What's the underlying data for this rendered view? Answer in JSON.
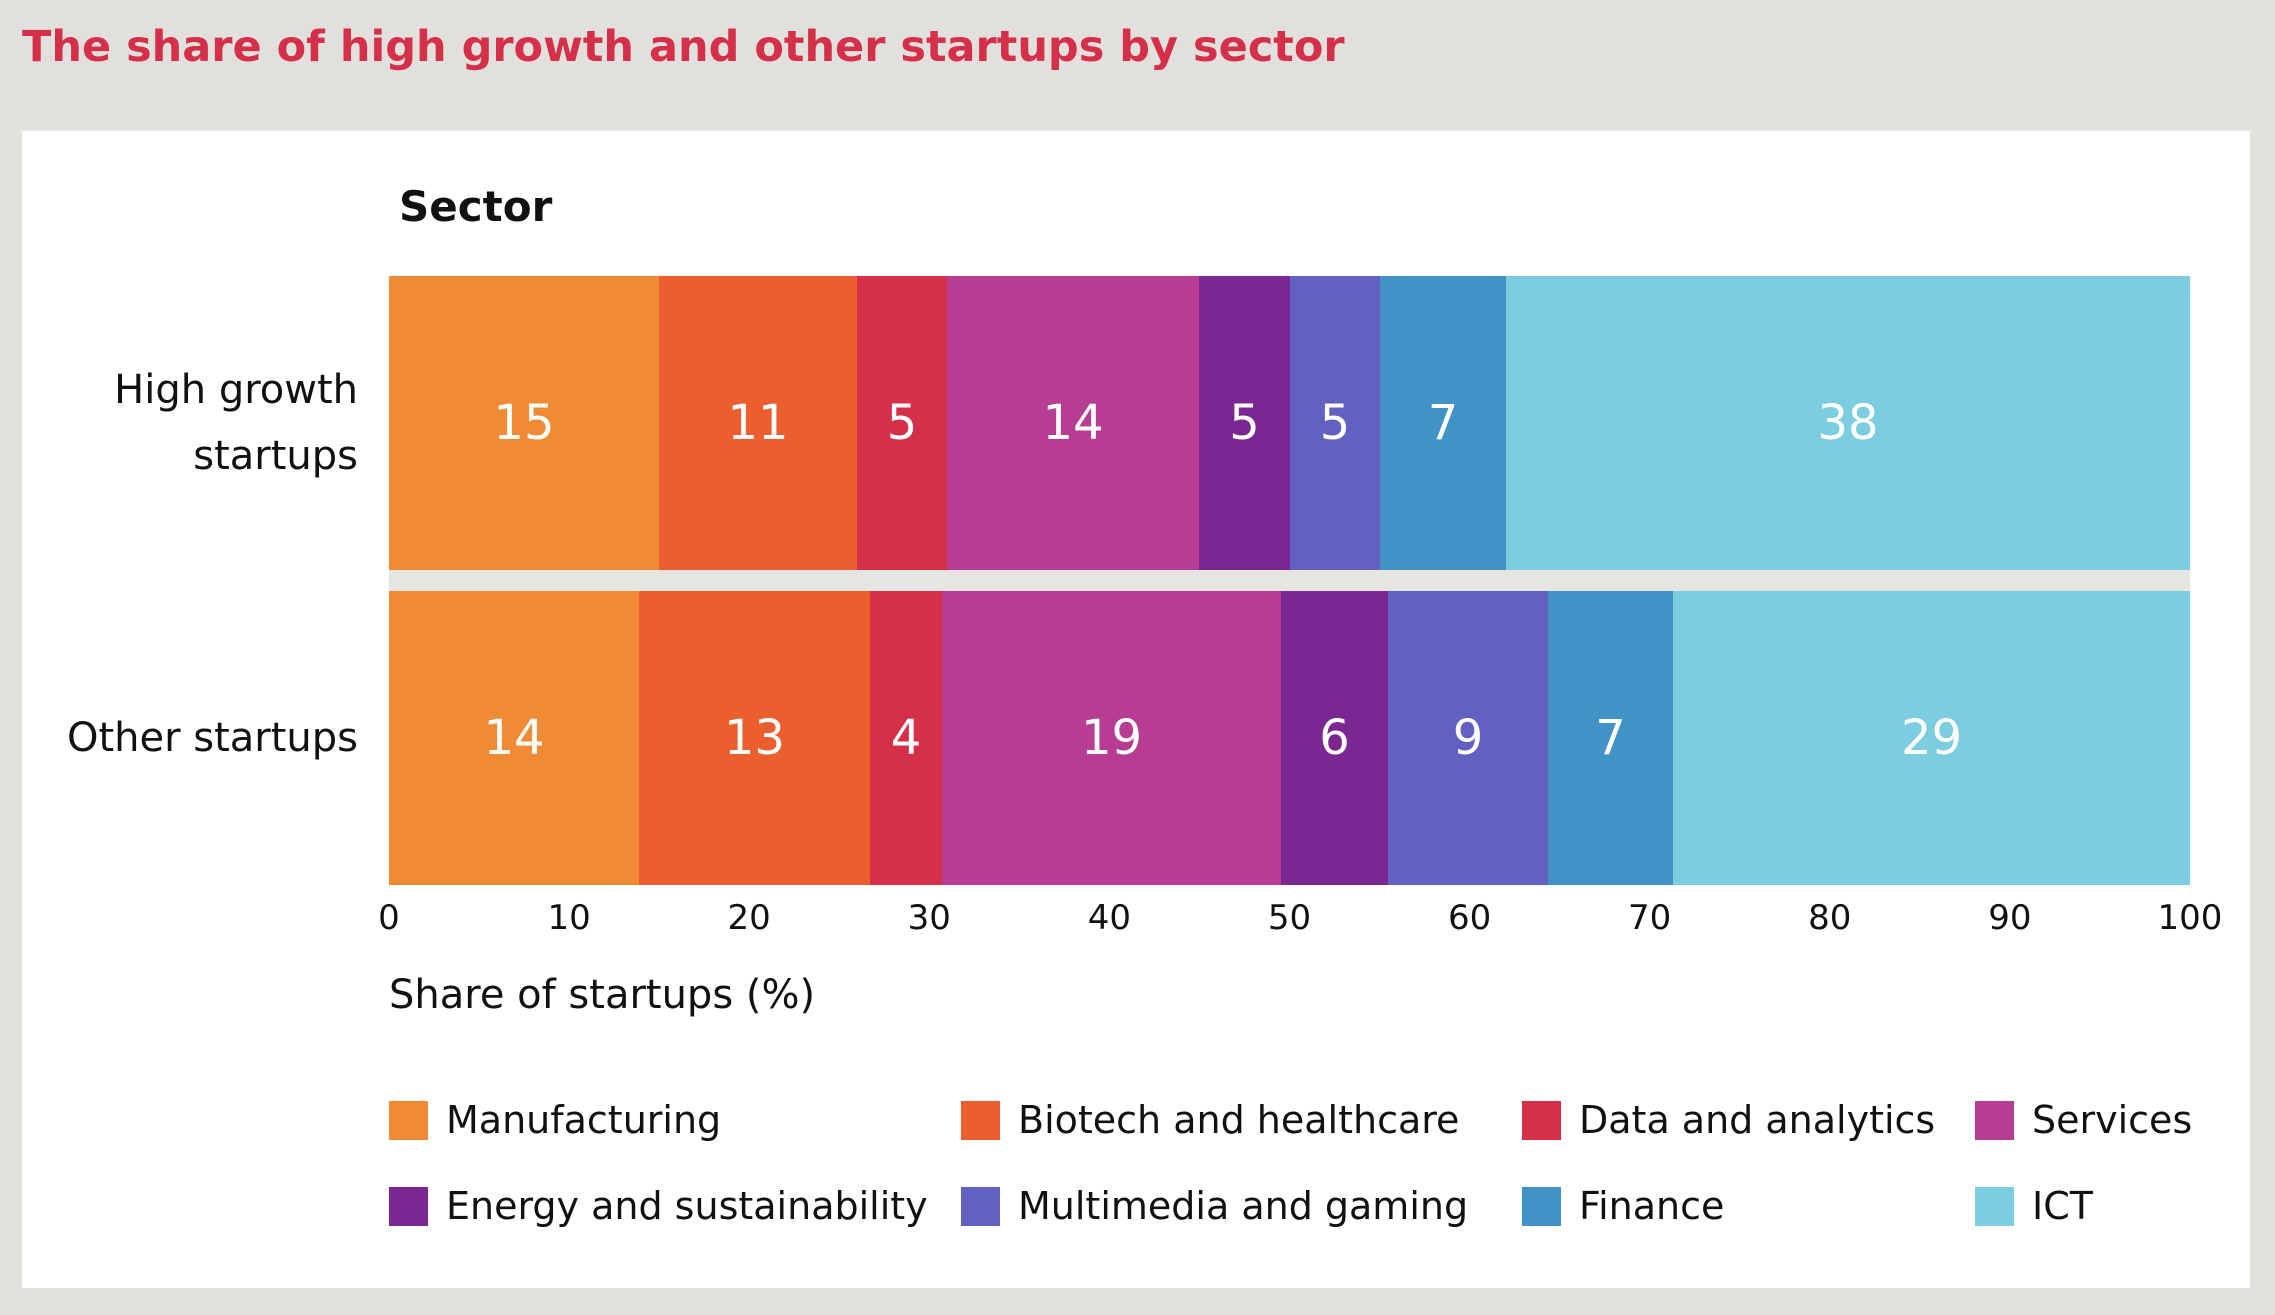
{
  "title": "The share of high growth and other startups by sector",
  "chart_data": {
    "type": "bar",
    "orientation": "horizontal",
    "stacked": true,
    "legend_title": "Sector",
    "categories": [
      "High growth startups",
      "Other startups"
    ],
    "xlabel": "Share of startups (%)",
    "xlim": [
      0,
      100
    ],
    "xticks": [
      0,
      10,
      20,
      30,
      40,
      50,
      60,
      70,
      80,
      90,
      100
    ],
    "grid": false,
    "legend_position": "bottom",
    "series": [
      {
        "name": "Manufacturing",
        "color": "#ee8b34",
        "values": [
          15,
          14
        ]
      },
      {
        "name": "Biotech and healthcare",
        "color": "#ea5f2d",
        "values": [
          11,
          13
        ]
      },
      {
        "name": "Data and analytics",
        "color": "#d5304a",
        "values": [
          5,
          4
        ]
      },
      {
        "name": "Services",
        "color": "#b73d92",
        "values": [
          14,
          19
        ]
      },
      {
        "name": "Energy and sustainability",
        "color": "#7b2791",
        "values": [
          5,
          6
        ]
      },
      {
        "name": "Multimedia and gaming",
        "color": "#6261c2",
        "values": [
          5,
          9
        ]
      },
      {
        "name": "Finance",
        "color": "#4192c5",
        "values": [
          7,
          7
        ]
      },
      {
        "name": "ICT",
        "color": "#7dcde0",
        "values": [
          38,
          29
        ]
      }
    ]
  }
}
